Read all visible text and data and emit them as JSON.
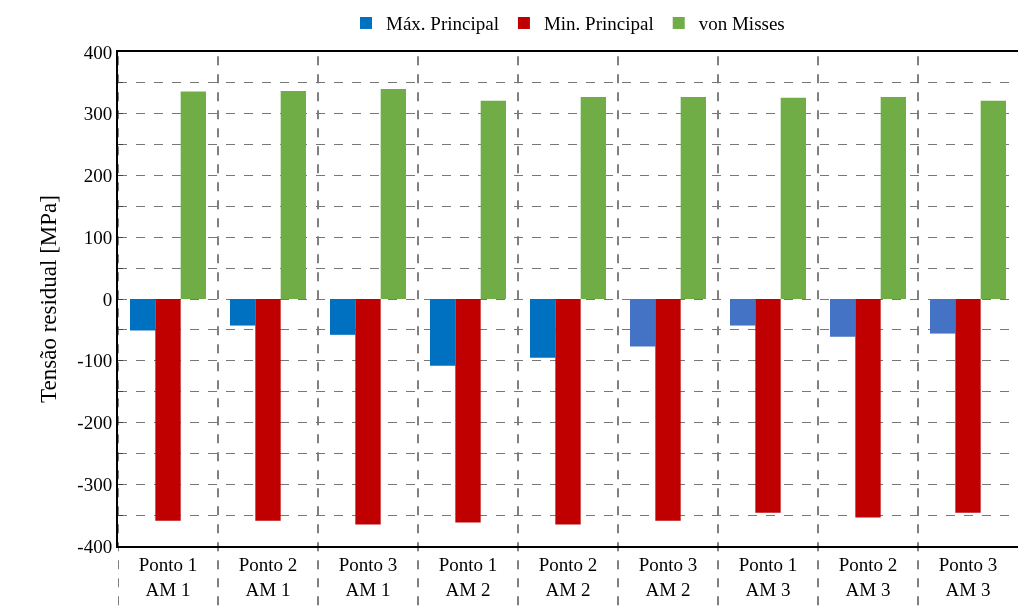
{
  "chart_data": {
    "type": "bar",
    "ylabel": "Tensão residual [MPa]",
    "categories": [
      "Ponto 1\nAM 1",
      "Ponto 2\nAM 1",
      "Ponto 3\nAM 1",
      "Ponto 1\nAM 2",
      "Ponto 2\nAM 2",
      "Ponto 3\nAM 2",
      "Ponto 1\nAM 3",
      "Ponto 2\nAM 3",
      "Ponto 3\nAM 3"
    ],
    "series": [
      {
        "name": "Máx. Principal",
        "colors": [
          "#0070c0",
          "#0070c0",
          "#0070c0",
          "#0070c0",
          "#0070c0",
          "#4472c4",
          "#4472c4",
          "#4472c4",
          "#4472c4"
        ],
        "values": [
          -51,
          -43,
          -58,
          -108,
          -95,
          -77,
          -43,
          -61,
          -56
        ]
      },
      {
        "name": "Min. Principal",
        "color": "#c00000",
        "values": [
          -359,
          -359,
          -365,
          -362,
          -365,
          -359,
          -346,
          -354,
          -346
        ]
      },
      {
        "name": "von Misses",
        "color": "#70ad47",
        "values": [
          336,
          337,
          340,
          321,
          327,
          327,
          326,
          327,
          321
        ]
      }
    ],
    "ylim": [
      -400,
      400
    ],
    "yticks": [
      -400,
      {
        "value": -350,
        "label": null
      },
      -300,
      {
        "value": -250,
        "label": null
      },
      -200,
      {
        "value": -150,
        "label": null
      },
      -100,
      {
        "value": -50,
        "label": null
      },
      0,
      {
        "value": 50,
        "label": null
      },
      100,
      {
        "value": 150,
        "label": null
      },
      200,
      {
        "value": 250,
        "label": null
      },
      300,
      {
        "value": 350,
        "label": null
      },
      400
    ],
    "grid": true,
    "legend": "top"
  }
}
